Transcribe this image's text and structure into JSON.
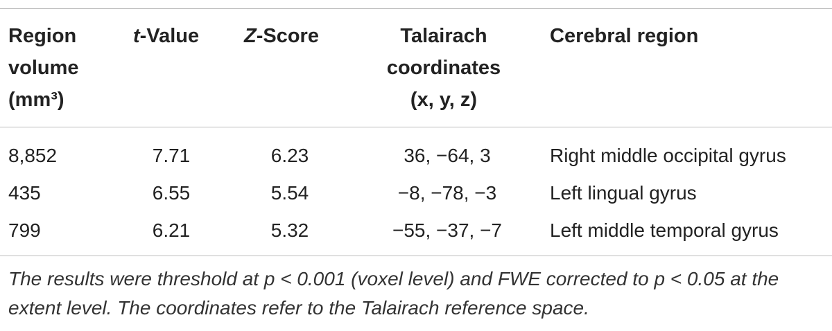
{
  "table": {
    "header": [
      "Region volume (mm³)",
      {
        "italic": "t",
        "text": "-Value"
      },
      {
        "italic": "Z",
        "text": "-Score"
      },
      "Talairach coordinates (x, y, z)",
      "Cerebral region"
    ],
    "rows": [
      [
        "8,852",
        "7.71",
        "6.23",
        "36, −64, 3",
        "Right middle occipital gyrus"
      ],
      [
        "435",
        "6.55",
        "5.54",
        "−8, −78, −3",
        "Left lingual gyrus"
      ],
      [
        "799",
        "6.21",
        "5.32",
        "−55, −37, −7",
        "Left middle temporal gyrus"
      ]
    ],
    "footnote": "The results were threshold at p < 0.001 (voxel level) and FWE corrected to p < 0.05 at the extent level. The coordinates refer to the Talairach reference space."
  }
}
